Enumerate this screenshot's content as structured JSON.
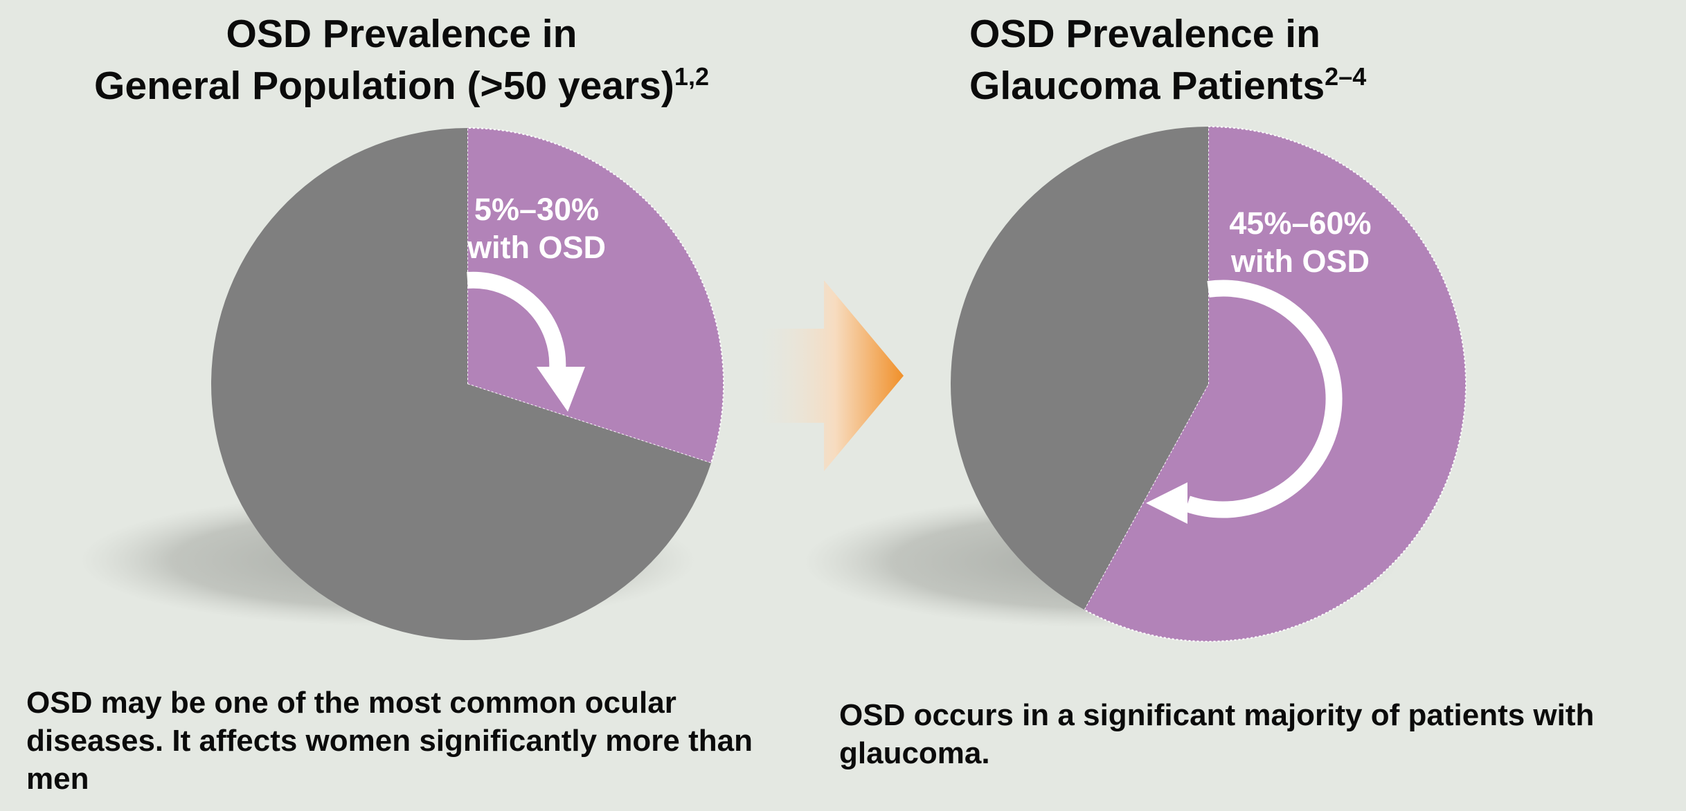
{
  "titles": {
    "left": {
      "text": "OSD Prevalence in",
      "line2": "General Population (>50 years)",
      "sup": "1,2"
    },
    "right": {
      "text": "OSD Prevalence in",
      "line2": "Glaucoma Patients",
      "sup": "2–4"
    }
  },
  "captions": {
    "left": "OSD may be one of the most common ocular diseases. It affects women significantly more than men",
    "right": "OSD occurs in a significant majority of patients with glaucoma."
  },
  "chart_data": [
    {
      "type": "pie",
      "slices": [
        {
          "label": "5%–30% with OSD",
          "value": 30,
          "color": "#b283b8"
        },
        {
          "label": "",
          "value": 70,
          "color": "#7f7f7f"
        }
      ],
      "annotation_lines": [
        "5%–30%",
        "with OSD"
      ],
      "start": "12 o'clock, clockwise"
    },
    {
      "type": "pie",
      "slices": [
        {
          "label": "45%–60% with OSD",
          "value": 58,
          "color": "#b283b8"
        },
        {
          "label": "",
          "value": 42,
          "color": "#7f7f7f"
        }
      ],
      "annotation_lines": [
        "45%–60%",
        "with OSD"
      ],
      "start": "12 o'clock, clockwise"
    }
  ],
  "colors": {
    "osd": "#b283b8",
    "other": "#7f7f7f",
    "arrow": "#f0902a",
    "background": "#e4e8e2"
  },
  "icons": {
    "transition": "arrow-right-icon",
    "rotation": "curved-arrow-icon"
  }
}
